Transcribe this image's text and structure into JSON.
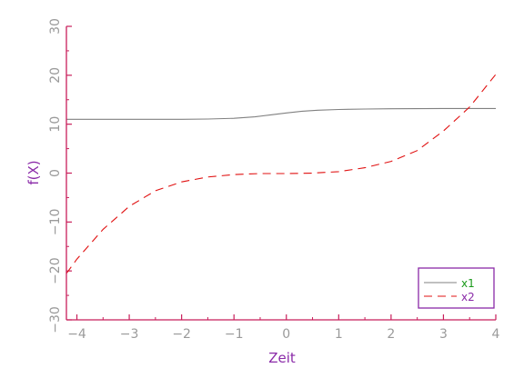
{
  "chart_data": {
    "type": "line",
    "xlabel": "Zeit",
    "ylabel": "f(X)",
    "xlim": [
      -4.2,
      4.0
    ],
    "ylim": [
      -30,
      30
    ],
    "xticks": [
      -4,
      -3,
      -2,
      -1,
      0,
      1,
      2,
      3,
      4
    ],
    "xtick_labels": [
      "−4",
      "−3",
      "−2",
      "−1",
      "0",
      "1",
      "2",
      "3",
      "4"
    ],
    "yticks": [
      -30,
      -20,
      -10,
      0,
      10,
      20,
      30
    ],
    "ytick_labels": [
      "−30",
      "−20",
      "−10",
      "0",
      "10",
      "20",
      "30"
    ],
    "grid": false,
    "legend_position": "bottom-right",
    "series": [
      {
        "name": "x1",
        "style": "solid",
        "color": "#808080",
        "x": [
          -4.2,
          -3.0,
          -2.0,
          -1.5,
          -1.0,
          -0.6,
          -0.3,
          0.0,
          0.3,
          0.6,
          1.0,
          1.5,
          2.0,
          3.0,
          4.0
        ],
        "y": [
          11.0,
          11.0,
          11.0,
          11.05,
          11.2,
          11.5,
          11.9,
          12.3,
          12.65,
          12.85,
          13.0,
          13.1,
          13.15,
          13.2,
          13.2
        ]
      },
      {
        "name": "x2",
        "style": "dashed",
        "color": "#e01010",
        "x": [
          -4.2,
          -4.0,
          -3.5,
          -3.0,
          -2.5,
          -2.0,
          -1.5,
          -1.0,
          -0.5,
          0.0,
          0.5,
          1.0,
          1.5,
          2.0,
          2.5,
          3.0,
          3.5,
          4.0
        ],
        "y": [
          -20.5,
          -17.6,
          -11.5,
          -6.8,
          -3.6,
          -1.8,
          -0.8,
          -0.3,
          -0.1,
          -0.1,
          0.0,
          0.3,
          1.1,
          2.4,
          4.6,
          8.6,
          13.5,
          20.2
        ]
      }
    ]
  },
  "colors": {
    "axis": "#c81e5a",
    "tick_label": "#9a9a9a",
    "axis_title": "#8a2aa8",
    "legend_border": "#8a2aa8",
    "legend_text": "#1a9a1a"
  }
}
